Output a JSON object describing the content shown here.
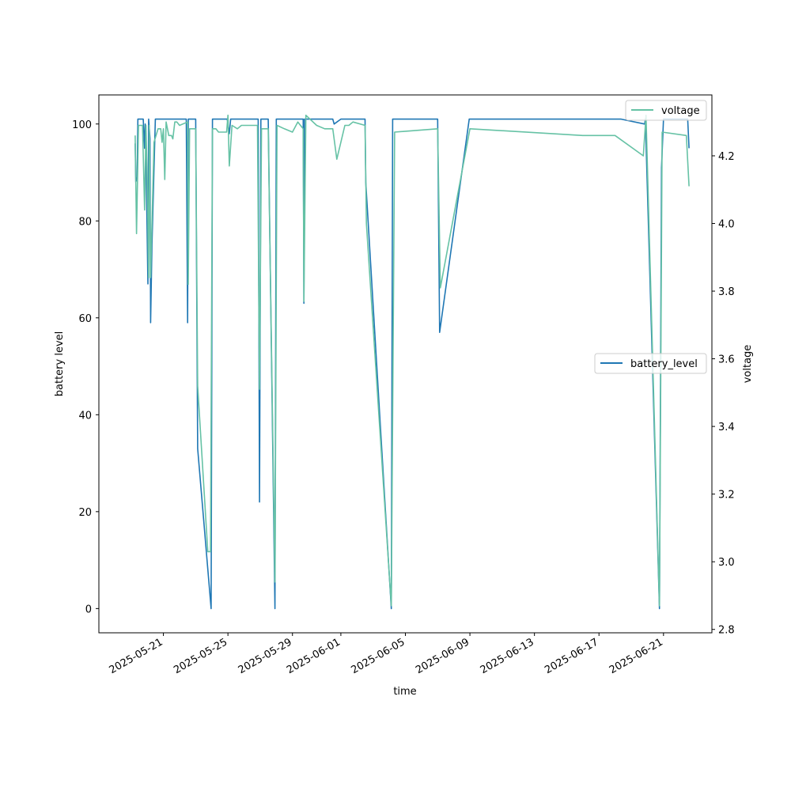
{
  "chart_data": {
    "type": "line",
    "xlabel": "time",
    "ylabel": "battery level",
    "y2label": "voltage",
    "x_ticks": [
      "2025-05-21",
      "2025-05-25",
      "2025-05-29",
      "2025-06-01",
      "2025-06-05",
      "2025-06-09",
      "2025-06-13",
      "2025-06-17",
      "2025-06-21"
    ],
    "y_ticks": [
      0,
      20,
      40,
      60,
      80,
      100
    ],
    "y2_ticks": [
      2.8,
      3.0,
      3.2,
      3.4,
      3.6,
      3.8,
      4.0,
      4.2
    ],
    "xlim": [
      "2025-05-17T00:00",
      "2025-06-24T00:00"
    ],
    "ylim": [
      -5,
      106
    ],
    "y2lim": [
      2.79,
      4.38
    ],
    "grid": false,
    "series": [
      {
        "name": "battery_level",
        "axis": "left",
        "color": "#1f77b4",
        "legend_position": "center-right",
        "points": [
          [
            "2025-05-19T06:00",
            96
          ],
          [
            "2025-05-19T07:00",
            88
          ],
          [
            "2025-05-19T09:00",
            89
          ],
          [
            "2025-05-19T10:00",
            101
          ],
          [
            "2025-05-19T18:00",
            101
          ],
          [
            "2025-05-19T19:00",
            98
          ],
          [
            "2025-05-19T20:00",
            95
          ],
          [
            "2025-05-19T21:00",
            100
          ],
          [
            "2025-05-19T22:00",
            94
          ],
          [
            "2025-05-20T01:00",
            67
          ],
          [
            "2025-05-20T02:00",
            101
          ],
          [
            "2025-05-20T04:00",
            97
          ],
          [
            "2025-05-20T05:00",
            59
          ],
          [
            "2025-05-20T07:00",
            75
          ],
          [
            "2025-05-20T12:00",
            101
          ],
          [
            "2025-05-21T12:00",
            101
          ],
          [
            "2025-05-22T10:00",
            101
          ],
          [
            "2025-05-22T12:00",
            59
          ],
          [
            "2025-05-22T13:00",
            101
          ],
          [
            "2025-05-23T00:00",
            101
          ],
          [
            "2025-05-23T03:00",
            33
          ],
          [
            "2025-05-23T23:00",
            0
          ],
          [
            "2025-05-24T01:00",
            101
          ],
          [
            "2025-05-24T23:00",
            101
          ],
          [
            "2025-05-25T02:00",
            98
          ],
          [
            "2025-05-25T04:00",
            101
          ],
          [
            "2025-05-26T21:00",
            101
          ],
          [
            "2025-05-26T23:00",
            22
          ],
          [
            "2025-05-27T01:00",
            101
          ],
          [
            "2025-05-27T12:00",
            101
          ],
          [
            "2025-05-27T22:00",
            0
          ],
          [
            "2025-05-28T00:00",
            101
          ],
          [
            "2025-05-29T16:00",
            101
          ],
          [
            "2025-05-29T17:00",
            63
          ],
          [
            "2025-05-29T18:00",
            101
          ],
          [
            "2025-05-31T12:00",
            101
          ],
          [
            "2025-05-31T14:00",
            100
          ],
          [
            "2025-06-01T00:00",
            101
          ],
          [
            "2025-06-02T12:00",
            101
          ],
          [
            "2025-06-02T13:00",
            88
          ],
          [
            "2025-06-04T03:00",
            0
          ],
          [
            "2025-06-04T05:00",
            101
          ],
          [
            "2025-06-07T00:00",
            101
          ],
          [
            "2025-06-07T03:00",
            57
          ],
          [
            "2025-06-08T23:00",
            101
          ],
          [
            "2025-06-18T09:00",
            101
          ],
          [
            "2025-06-19T20:00",
            100
          ],
          [
            "2025-06-19T21:00",
            101
          ],
          [
            "2025-06-20T18:00",
            0
          ],
          [
            "2025-06-20T21:00",
            91
          ],
          [
            "2025-06-21T00:00",
            101
          ],
          [
            "2025-06-22T12:00",
            101
          ],
          [
            "2025-06-22T14:00",
            95
          ]
        ]
      },
      {
        "name": "voltage",
        "axis": "right",
        "color": "#66c2a5",
        "legend_position": "top-right",
        "points": [
          [
            "2025-05-19T06:00",
            4.26
          ],
          [
            "2025-05-19T08:00",
            3.97
          ],
          [
            "2025-05-19T11:00",
            4.29
          ],
          [
            "2025-05-19T17:00",
            4.29
          ],
          [
            "2025-05-19T20:00",
            4.04
          ],
          [
            "2025-05-19T22:00",
            4.29
          ],
          [
            "2025-05-20T00:00",
            4.12
          ],
          [
            "2025-05-20T02:00",
            3.84
          ],
          [
            "2025-05-20T03:00",
            4.29
          ],
          [
            "2025-05-20T05:00",
            3.84
          ],
          [
            "2025-05-20T10:00",
            4.24
          ],
          [
            "2025-05-20T16:00",
            4.28
          ],
          [
            "2025-05-20T20:00",
            4.28
          ],
          [
            "2025-05-20T22:00",
            4.24
          ],
          [
            "2025-05-21T00:00",
            4.28
          ],
          [
            "2025-05-21T02:00",
            4.13
          ],
          [
            "2025-05-21T04:00",
            4.3
          ],
          [
            "2025-05-21T08:00",
            4.26
          ],
          [
            "2025-05-21T12:00",
            4.26
          ],
          [
            "2025-05-21T14:00",
            4.25
          ],
          [
            "2025-05-21T17:00",
            4.3
          ],
          [
            "2025-05-21T20:00",
            4.3
          ],
          [
            "2025-05-22T00:00",
            4.29
          ],
          [
            "2025-05-22T12:00",
            4.3
          ],
          [
            "2025-05-22T13:00",
            3.82
          ],
          [
            "2025-05-22T15:00",
            4.28
          ],
          [
            "2025-05-23T00:00",
            4.28
          ],
          [
            "2025-05-23T03:00",
            3.52
          ],
          [
            "2025-05-23T18:00",
            3.03
          ],
          [
            "2025-05-23T22:00",
            3.03
          ],
          [
            "2025-05-24T01:00",
            4.28
          ],
          [
            "2025-05-24T06:00",
            4.28
          ],
          [
            "2025-05-24T10:00",
            4.27
          ],
          [
            "2025-05-24T22:00",
            4.27
          ],
          [
            "2025-05-25T00:00",
            4.32
          ],
          [
            "2025-05-25T02:00",
            4.17
          ],
          [
            "2025-05-25T06:00",
            4.29
          ],
          [
            "2025-05-25T14:00",
            4.28
          ],
          [
            "2025-05-25T20:00",
            4.29
          ],
          [
            "2025-05-26T12:00",
            4.29
          ],
          [
            "2025-05-26T20:00",
            4.29
          ],
          [
            "2025-05-26T23:00",
            3.51
          ],
          [
            "2025-05-27T02:00",
            4.28
          ],
          [
            "2025-05-27T12:00",
            4.28
          ],
          [
            "2025-05-27T22:00",
            2.94
          ],
          [
            "2025-05-28T01:00",
            4.29
          ],
          [
            "2025-05-28T12:00",
            4.28
          ],
          [
            "2025-05-29T00:00",
            4.27
          ],
          [
            "2025-05-29T08:00",
            4.3
          ],
          [
            "2025-05-29T16:00",
            4.28
          ],
          [
            "2025-05-29T17:00",
            3.77
          ],
          [
            "2025-05-29T20:00",
            4.32
          ],
          [
            "2025-05-30T12:00",
            4.29
          ],
          [
            "2025-05-31T00:00",
            4.28
          ],
          [
            "2025-05-31T12:00",
            4.28
          ],
          [
            "2025-05-31T18:00",
            4.19
          ],
          [
            "2025-06-01T00:00",
            4.24
          ],
          [
            "2025-06-01T06:00",
            4.29
          ],
          [
            "2025-06-01T12:00",
            4.29
          ],
          [
            "2025-06-01T18:00",
            4.3
          ],
          [
            "2025-06-02T12:00",
            4.29
          ],
          [
            "2025-06-02T14:00",
            4.0
          ],
          [
            "2025-06-04T03:00",
            2.87
          ],
          [
            "2025-06-04T08:00",
            4.27
          ],
          [
            "2025-06-07T00:00",
            4.28
          ],
          [
            "2025-06-07T04:00",
            3.81
          ],
          [
            "2025-06-09T00:00",
            4.28
          ],
          [
            "2025-06-16T00:00",
            4.26
          ],
          [
            "2025-06-18T00:00",
            4.26
          ],
          [
            "2025-06-19T18:00",
            4.2
          ],
          [
            "2025-06-19T22:00",
            4.32
          ],
          [
            "2025-06-20T18:00",
            2.87
          ],
          [
            "2025-06-20T22:00",
            4.27
          ],
          [
            "2025-06-22T10:00",
            4.26
          ],
          [
            "2025-06-22T14:00",
            4.11
          ]
        ]
      }
    ]
  }
}
